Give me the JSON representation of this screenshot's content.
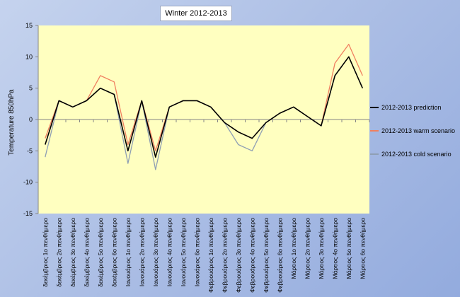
{
  "chart_data": {
    "type": "line",
    "title": "Winter 2012-2013",
    "ylabel": "Temperature 850hPa",
    "xlabel": "",
    "ylim": [
      -15,
      15
    ],
    "yticks": [
      15,
      10,
      5,
      0,
      -5,
      -10,
      -15
    ],
    "grid": false,
    "legend_position": "right",
    "categories": [
      "δεκέμβριος 1ο πενθήμερο",
      "δεκέμβριος 2ο πενθήμερο",
      "δεκέμβριος 3ο πενθήμερο",
      "δεκέμβριος 4ο πενθήμερο",
      "δεκέμβριος 5ο πενθήμερο",
      "δεκέμβριος 6ο πενθήμερο",
      "Ιανουάριος 1ο πενθήμερο",
      "Ιανουάριος 2ο πενθήμερο",
      "Ιανουάριος 3ο πενθήμερο",
      "Ιανουάριος 4ο πενθήμερο",
      "Ιανουάριος 5ο πενθήμερο",
      "Ιανουάριος 6ο πενθήμερο",
      "Φεβρουάριος 1ο πενθήμερο",
      "Φεβρουάριος 2ο πενθήμερο",
      "Φεβρουάριος 3ο πενθήμερο",
      "Φεβρουάριος 4ο πενθήμερο",
      "Φεβρουάριος 5ο πενθήμερο",
      "Φεβρουάριος 6ο πενθήμερο",
      "Μάρτιος 1ο πενθήμερο",
      "Μάρτιος 2ο πενθήμερο",
      "Μάρτιος 3ο πενθήμερο",
      "Μάρτιος 4ο πενθήμερο",
      "Μάρτιος 5ο πενθήμερο",
      "Μάρτιος 6ο πενθήμερο"
    ],
    "series": [
      {
        "name": "2012-2013 warm scenario",
        "color": "#f08060",
        "values": [
          -3,
          3,
          2,
          3,
          7,
          6,
          -4,
          3,
          -5,
          2,
          3,
          3,
          2,
          -0.5,
          -2,
          -3,
          -0.5,
          1,
          2,
          0.5,
          -1,
          9,
          12,
          7
        ]
      },
      {
        "name": "2012-2013 cold scenario",
        "color": "#8f9fb4",
        "values": [
          -6,
          3,
          2,
          3,
          5,
          4,
          -7,
          3,
          -8,
          2,
          3,
          3,
          2,
          -0.5,
          -4,
          -5,
          -0.5,
          1,
          2,
          0.5,
          -1,
          7,
          10,
          5
        ]
      },
      {
        "name": "2012-2013 prediction",
        "color": "#000000",
        "values": [
          -4,
          3,
          2,
          3,
          5,
          4,
          -5,
          3,
          -6,
          2,
          3,
          3,
          2,
          -0.5,
          -2,
          -3,
          -0.5,
          1,
          2,
          0.5,
          -1,
          7,
          10,
          5
        ]
      }
    ],
    "legend_order": [
      "2012-2013 prediction",
      "2012-2013 warm scenario",
      "2012-2013 cold scenario"
    ],
    "colors": {
      "plot_background": "#ffffc0",
      "axis": "#868686"
    }
  }
}
